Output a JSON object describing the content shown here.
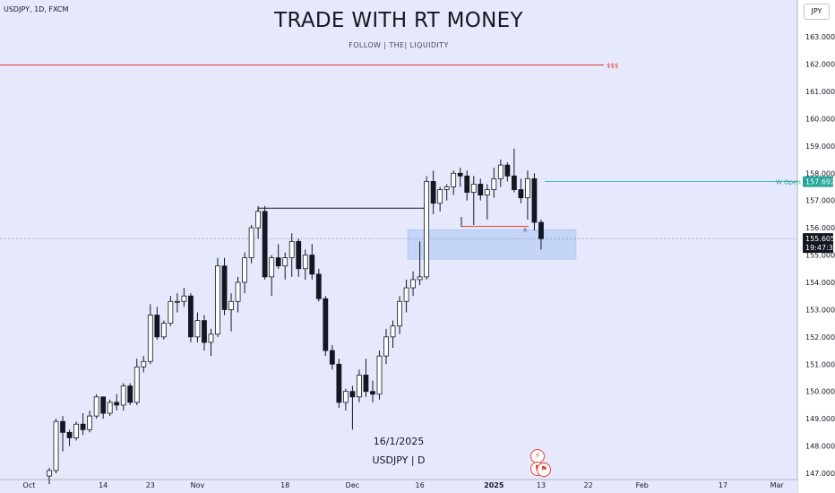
{
  "header": {
    "symbol": "USDJPY, 1D, FXCM",
    "title": "TRADE WITH RT MONEY",
    "subtitle": "FOLLOW  |  THE|  LIQUIDITY",
    "currency": "JPY"
  },
  "captions": {
    "date": "16/1/2025",
    "instrument": "USDJPY | D"
  },
  "colors": {
    "background": "#e6e9fb",
    "up": "#ffffff",
    "down": "#131722",
    "liquidity_line": "#e53935",
    "w_open": "#26a69a",
    "zone": "#c1d3f7"
  },
  "chart_data": {
    "type": "candlestick",
    "title": "TRADE WITH RT MONEY",
    "price_ylim": [
      146.7,
      164.0
    ],
    "y_ticks": [
      "147.000",
      "148.000",
      "149.000",
      "150.000",
      "151.000",
      "152.000",
      "153.000",
      "154.000",
      "155.000",
      "156.000",
      "157.000",
      "158.000",
      "159.000",
      "160.000",
      "161.000",
      "162.000",
      "163.000"
    ],
    "x_ticks": [
      {
        "label": "Oct",
        "index": -3
      },
      {
        "label": "14",
        "index": 8
      },
      {
        "label": "23",
        "index": 15
      },
      {
        "label": "Nov",
        "index": 22
      },
      {
        "label": "18",
        "index": 35
      },
      {
        "label": "Dec",
        "index": 45
      },
      {
        "label": "16",
        "index": 55
      },
      {
        "label": "2025",
        "index": 66
      },
      {
        "label": "13",
        "index": 73
      },
      {
        "label": "22",
        "index": 80
      },
      {
        "label": "Feb",
        "index": 88
      },
      {
        "label": "17",
        "index": 100
      },
      {
        "label": "Mar",
        "index": 108
      }
    ],
    "candles": [
      [
        146.9,
        147.2,
        146.6,
        147.1
      ],
      [
        147.1,
        149.0,
        147.0,
        148.9
      ],
      [
        148.9,
        149.1,
        147.8,
        148.5
      ],
      [
        148.5,
        148.6,
        148.0,
        148.3
      ],
      [
        148.3,
        148.9,
        148.2,
        148.8
      ],
      [
        148.8,
        149.2,
        148.4,
        148.6
      ],
      [
        148.6,
        149.3,
        148.5,
        149.1
      ],
      [
        149.1,
        149.9,
        149.0,
        149.8
      ],
      [
        149.8,
        149.8,
        149.0,
        149.2
      ],
      [
        149.2,
        149.7,
        149.1,
        149.6
      ],
      [
        149.6,
        149.9,
        149.3,
        149.5
      ],
      [
        149.5,
        150.3,
        149.3,
        150.2
      ],
      [
        150.2,
        150.3,
        149.5,
        149.6
      ],
      [
        149.6,
        151.2,
        149.5,
        150.9
      ],
      [
        150.9,
        151.3,
        150.7,
        151.1
      ],
      [
        151.1,
        153.2,
        151.0,
        152.8
      ],
      [
        152.8,
        153.1,
        151.9,
        152.0
      ],
      [
        152.0,
        152.6,
        151.9,
        152.5
      ],
      [
        152.5,
        153.5,
        152.4,
        153.3
      ],
      [
        153.3,
        153.6,
        152.9,
        153.3
      ],
      [
        153.3,
        153.8,
        153.1,
        153.5
      ],
      [
        153.5,
        153.6,
        151.8,
        152.0
      ],
      [
        152.0,
        152.9,
        151.8,
        152.6
      ],
      [
        152.6,
        152.8,
        151.5,
        151.8
      ],
      [
        151.8,
        152.3,
        151.3,
        152.1
      ],
      [
        152.1,
        154.9,
        152.0,
        154.6
      ],
      [
        154.6,
        154.9,
        152.8,
        153.0
      ],
      [
        153.0,
        153.6,
        152.2,
        153.3
      ],
      [
        153.3,
        154.2,
        152.9,
        154.0
      ],
      [
        154.0,
        155.1,
        153.6,
        154.9
      ],
      [
        154.9,
        156.1,
        154.7,
        156.0
      ],
      [
        156.0,
        156.8,
        155.6,
        156.6
      ],
      [
        156.6,
        156.8,
        154.1,
        154.2
      ],
      [
        154.2,
        155.0,
        153.5,
        154.9
      ],
      [
        154.9,
        155.4,
        154.5,
        154.6
      ],
      [
        154.6,
        155.1,
        154.1,
        154.9
      ],
      [
        154.9,
        155.8,
        154.2,
        155.5
      ],
      [
        155.5,
        155.6,
        154.2,
        154.5
      ],
      [
        154.5,
        155.2,
        154.1,
        155.0
      ],
      [
        155.0,
        155.4,
        154.1,
        154.3
      ],
      [
        154.3,
        154.5,
        153.3,
        153.4
      ],
      [
        153.4,
        153.5,
        151.3,
        151.5
      ],
      [
        151.5,
        151.7,
        150.8,
        151.0
      ],
      [
        151.0,
        151.2,
        149.4,
        149.6
      ],
      [
        149.6,
        150.1,
        149.3,
        150.0
      ],
      [
        150.0,
        150.2,
        148.6,
        149.8
      ],
      [
        149.8,
        150.8,
        149.6,
        150.6
      ],
      [
        150.6,
        151.2,
        149.8,
        150.0
      ],
      [
        150.0,
        150.4,
        149.6,
        149.9
      ],
      [
        149.9,
        151.5,
        149.7,
        151.3
      ],
      [
        151.3,
        152.3,
        151.0,
        152.0
      ],
      [
        152.0,
        152.6,
        151.6,
        152.4
      ],
      [
        152.4,
        153.5,
        152.1,
        153.3
      ],
      [
        153.3,
        154.1,
        152.9,
        153.8
      ],
      [
        153.8,
        154.4,
        153.5,
        154.1
      ],
      [
        154.1,
        155.5,
        153.9,
        154.2
      ],
      [
        154.2,
        157.9,
        154.1,
        157.7
      ],
      [
        157.7,
        158.1,
        156.5,
        156.9
      ],
      [
        156.9,
        157.5,
        156.6,
        157.4
      ],
      [
        157.4,
        157.6,
        157.0,
        157.5
      ],
      [
        157.5,
        158.1,
        157.2,
        158.0
      ],
      [
        158.0,
        158.2,
        157.5,
        157.9
      ],
      [
        157.9,
        158.1,
        157.0,
        157.3
      ],
      [
        157.3,
        157.9,
        156.1,
        157.6
      ],
      [
        157.6,
        157.8,
        157.0,
        157.2
      ],
      [
        157.2,
        157.6,
        156.3,
        157.4
      ],
      [
        157.4,
        158.2,
        157.1,
        157.8
      ],
      [
        157.8,
        158.5,
        157.5,
        158.3
      ],
      [
        158.3,
        158.4,
        157.7,
        157.9
      ],
      [
        157.9,
        158.9,
        157.3,
        157.4
      ],
      [
        157.4,
        157.8,
        156.9,
        157.1
      ],
      [
        157.1,
        158.1,
        156.3,
        157.8
      ],
      [
        157.8,
        158.0,
        155.9,
        156.2
      ],
      [
        156.2,
        156.3,
        155.2,
        155.6
      ]
    ],
    "annotations": {
      "liquidity_label": "$$$",
      "liquidity_level": 161.97,
      "w_open_label": "W Open",
      "w_open_price": "157.692",
      "w_open_value": 157.692,
      "current_price": "155.605",
      "current_value": 155.605,
      "countdown": "19:47:34",
      "x_marker": "x",
      "zone_low": 154.85,
      "zone_high": 155.93,
      "swing_high_level": 156.72,
      "swing_low_level": 156.05
    }
  }
}
